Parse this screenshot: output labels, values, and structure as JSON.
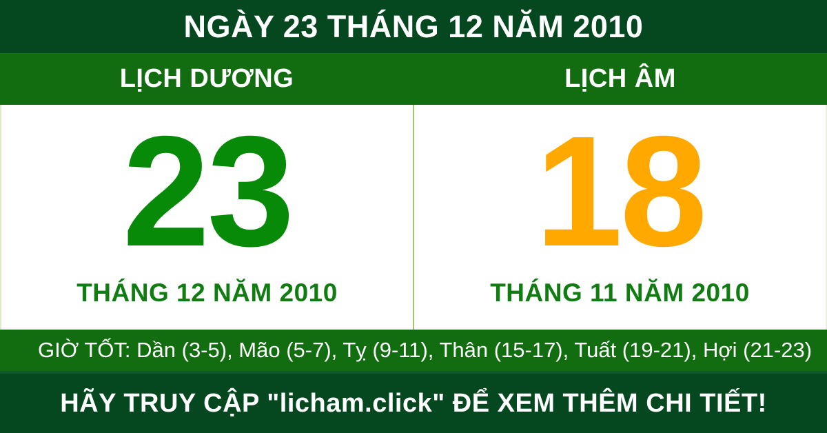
{
  "header": {
    "title": "NGÀY 23 THÁNG 12 NĂM 2010"
  },
  "columns": {
    "solar_label": "LỊCH DƯƠNG",
    "lunar_label": "LỊCH ÂM"
  },
  "solar": {
    "day": "23",
    "month_year": "THÁNG 12 NĂM 2010"
  },
  "lunar": {
    "day": "18",
    "month_year": "THÁNG 11 NĂM 2010"
  },
  "good_hours": {
    "text": "GIỜ TỐT: Dần (3-5), Mão (5-7), Tỵ (9-11), Thân (15-17), Tuất (19-21), Hợi (21-23)"
  },
  "footer": {
    "text": "HÃY TRUY CẬP \"licham.click\" ĐỂ XEM THÊM CHI TIẾT!"
  },
  "colors": {
    "dark_green": "#05471F",
    "band_green": "#116D10",
    "number_green": "#078A07",
    "month_green": "#117C11",
    "number_orange": "#FFA800",
    "divider_light_green": "#9CC96B",
    "text_white": "#FFFFFF"
  }
}
